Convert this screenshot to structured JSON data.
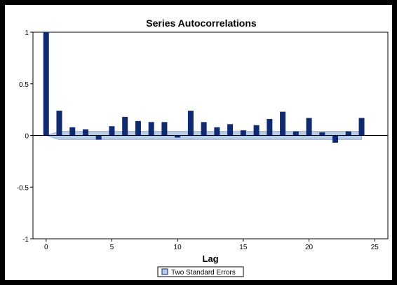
{
  "chart_data": {
    "type": "bar",
    "title": "Series Autocorrelations",
    "xlabel": "Lag",
    "ylabel": "",
    "x": [
      0,
      1,
      2,
      3,
      4,
      5,
      6,
      7,
      8,
      9,
      10,
      11,
      12,
      13,
      14,
      15,
      16,
      17,
      18,
      19,
      20,
      21,
      22,
      23,
      24
    ],
    "values": [
      1.0,
      0.24,
      0.08,
      0.06,
      -0.04,
      0.09,
      0.18,
      0.14,
      0.13,
      0.13,
      -0.02,
      0.24,
      0.13,
      0.08,
      0.11,
      0.05,
      0.1,
      0.16,
      0.23,
      0.04,
      0.17,
      0.03,
      -0.07,
      0.04,
      0.17
    ],
    "two_std_errors": {
      "upper": [
        0.0,
        0.04,
        0.04,
        0.04,
        0.04,
        0.04,
        0.04,
        0.04,
        0.04,
        0.04,
        0.04,
        0.04,
        0.04,
        0.04,
        0.04,
        0.04,
        0.04,
        0.04,
        0.04,
        0.04,
        0.04,
        0.04,
        0.04,
        0.04,
        0.04
      ],
      "lower": [
        0.0,
        -0.04,
        -0.04,
        -0.04,
        -0.04,
        -0.04,
        -0.04,
        -0.04,
        -0.04,
        -0.04,
        -0.04,
        -0.04,
        -0.04,
        -0.04,
        -0.04,
        -0.04,
        -0.04,
        -0.04,
        -0.04,
        -0.04,
        -0.04,
        -0.04,
        -0.04,
        -0.04,
        -0.04
      ]
    },
    "xlim": [
      -1,
      26
    ],
    "ylim": [
      -1,
      1
    ],
    "xticks": [
      0,
      5,
      10,
      15,
      20,
      25
    ],
    "xtick_labels": [
      "0",
      "5",
      "10",
      "15",
      "20",
      "25"
    ],
    "yticks": [
      -1,
      -0.5,
      0,
      0.5,
      1
    ],
    "ytick_labels": [
      "-1",
      "-0.5",
      "0",
      "0.5",
      "1"
    ],
    "legend": {
      "label": "Two Standard Errors",
      "position": "bottom-center"
    },
    "grid": false,
    "colors": {
      "bar": "#0e2a72",
      "band_fill": "#b8cce4",
      "band_stroke": "#9bb3d4",
      "zero_line": "#000000",
      "frame_background": "#000000"
    }
  }
}
